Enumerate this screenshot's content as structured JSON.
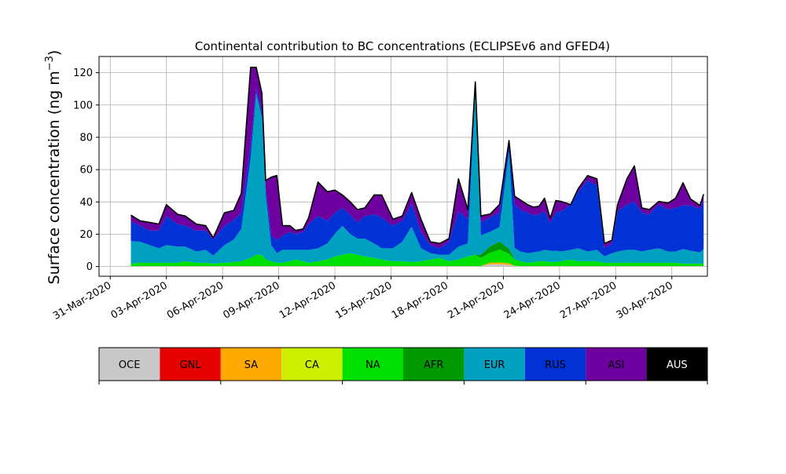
{
  "chart_data": {
    "type": "area",
    "stacked": true,
    "title": "Continental contribution to BC concentrations (ECLIPSEv6 and GFED4)",
    "ylabel_main": "Surface concentration (ng m",
    "ylabel_exp": "−3",
    "ylabel_close": ")",
    "xlabel": "",
    "ylim": [
      -6,
      130
    ],
    "xlim_days": [
      -0.6,
      31.9
    ],
    "x_ticks": [
      "31-Mar-2020",
      "03-Apr-2020",
      "06-Apr-2020",
      "09-Apr-2020",
      "12-Apr-2020",
      "15-Apr-2020",
      "18-Apr-2020",
      "21-Apr-2020",
      "24-Apr-2020",
      "27-Apr-2020",
      "30-Apr-2020"
    ],
    "x_tick_days": [
      0,
      3,
      6,
      9,
      12,
      15,
      18,
      21,
      24,
      27,
      30
    ],
    "y_ticks": [
      "0",
      "20",
      "40",
      "60",
      "80",
      "100",
      "120"
    ],
    "y_tick_values": [
      0,
      20,
      40,
      60,
      80,
      100,
      120
    ],
    "grid": true,
    "x_days": [
      1.1,
      1.6,
      2.1,
      2.6,
      3.0,
      3.6,
      4.0,
      4.6,
      5.1,
      5.5,
      6.1,
      6.6,
      7.0,
      7.5,
      7.8,
      8.1,
      8.3,
      8.6,
      8.9,
      9.2,
      9.6,
      9.9,
      10.3,
      10.6,
      11.1,
      11.6,
      12.0,
      12.4,
      12.8,
      13.2,
      13.6,
      14.1,
      14.5,
      15.1,
      15.6,
      16.1,
      16.6,
      17.1,
      17.6,
      18.1,
      18.6,
      19.1,
      19.5,
      19.8,
      20.3,
      20.8,
      21.3,
      21.6,
      21.9,
      22.3,
      22.6,
      22.9,
      23.2,
      23.5,
      23.8,
      24.1,
      24.6,
      25.0,
      25.5,
      26.0,
      26.4,
      26.8,
      27.1,
      27.6,
      28.0,
      28.4,
      28.8,
      29.3,
      29.8,
      30.2,
      30.6,
      31.0,
      31.5,
      31.7
    ],
    "series": [
      {
        "name": "OCE",
        "color": "#c8c8c8",
        "values": [
          0.3,
          0.3,
          0.3,
          0.3,
          0.3,
          0.3,
          0.3,
          0.3,
          0.3,
          0.3,
          0.3,
          0.3,
          0.3,
          0.3,
          0.3,
          0.3,
          0.3,
          0.3,
          0.3,
          0.3,
          0.3,
          0.3,
          0.3,
          0.3,
          0.3,
          0.3,
          0.3,
          0.3,
          0.3,
          0.3,
          0.3,
          0.3,
          0.3,
          0.3,
          0.3,
          0.3,
          0.3,
          0.3,
          0.3,
          0.3,
          0.3,
          0.3,
          0.3,
          0.3,
          1.5,
          1.5,
          1,
          0.5,
          0.3,
          0.3,
          0.3,
          0.3,
          0.3,
          0.3,
          0.3,
          0.3,
          0.3,
          0.3,
          0.3,
          0.3,
          0.3,
          0.3,
          0.3,
          0.3,
          0.3,
          0.3,
          0.3,
          0.3,
          0.3,
          0.3,
          0.3,
          0.3,
          0.3,
          0.3
        ]
      },
      {
        "name": "GNL",
        "color": "#e60000",
        "values": [
          0,
          0,
          0,
          0,
          0,
          0,
          0,
          0,
          0,
          0,
          0,
          0,
          0,
          0,
          0,
          0,
          0,
          0,
          0,
          0,
          0,
          0,
          0,
          0,
          0,
          0,
          0,
          0,
          0,
          0,
          0,
          0,
          0,
          0,
          0,
          0,
          0,
          0,
          0,
          0,
          0,
          0,
          0,
          0,
          0,
          0,
          0,
          0,
          0,
          0,
          0,
          0,
          0,
          0,
          0,
          0,
          0,
          0,
          0,
          0,
          0,
          0,
          0,
          0,
          0,
          0,
          0,
          0,
          0,
          0,
          0,
          0,
          0,
          0
        ]
      },
      {
        "name": "SA",
        "color": "#ffaa00",
        "values": [
          0,
          0,
          0,
          0,
          0,
          0,
          0,
          0,
          0,
          0,
          0,
          0,
          0,
          0,
          0,
          0,
          0,
          0,
          0,
          0,
          0,
          0,
          0,
          0,
          0,
          0,
          0,
          0,
          0,
          0,
          0,
          0,
          0,
          0,
          0,
          0,
          0,
          0,
          0,
          0,
          0,
          0,
          0,
          0,
          1,
          1,
          1,
          0,
          0,
          0,
          0,
          0,
          0,
          0,
          0,
          0,
          0,
          0,
          0,
          0,
          0,
          0,
          0,
          0,
          0,
          0,
          0,
          0,
          0,
          0,
          0,
          0,
          0,
          0
        ]
      },
      {
        "name": "CA",
        "color": "#ccf000",
        "values": [
          0,
          0,
          0,
          0,
          0,
          0,
          0,
          0,
          0,
          0,
          0,
          0,
          0,
          0,
          0,
          0,
          0,
          0,
          0,
          0,
          0,
          0,
          0,
          0,
          0,
          0,
          0,
          0,
          0,
          0,
          0,
          0,
          0,
          0,
          0,
          0,
          0,
          0,
          0,
          0,
          0,
          0,
          0,
          0,
          0,
          0,
          0,
          0,
          0,
          0,
          0,
          0,
          0,
          0,
          0,
          0,
          0,
          0,
          0,
          0,
          0,
          0,
          0,
          0,
          0,
          0,
          0,
          0,
          0,
          0,
          0,
          0,
          0,
          0
        ]
      },
      {
        "name": "NA",
        "color": "#00e000",
        "values": [
          1.5,
          2,
          2,
          2,
          2,
          2,
          3,
          2,
          2,
          1.5,
          2,
          2.5,
          3,
          5,
          7,
          7,
          4,
          3,
          2,
          2,
          3,
          4,
          3,
          2,
          3,
          4,
          6,
          7,
          8,
          7,
          6,
          5,
          4,
          3,
          3,
          2.5,
          3,
          4,
          5,
          3,
          4,
          6,
          7,
          5,
          6,
          8,
          6,
          4,
          3,
          2,
          2.5,
          3,
          3,
          2.5,
          2.5,
          3,
          4,
          3,
          3,
          3,
          2,
          2,
          2,
          2,
          2,
          2,
          2,
          2,
          2,
          2,
          1.5,
          1.5,
          1.5,
          1.5
        ]
      },
      {
        "name": "AFR",
        "color": "#009a00",
        "values": [
          0,
          0,
          0,
          0,
          0,
          0,
          0,
          0,
          0,
          0,
          0,
          0,
          0,
          0,
          0,
          0,
          0,
          0,
          0,
          0,
          0,
          0,
          0,
          0,
          0,
          0,
          0,
          0,
          0,
          0,
          0,
          0,
          0,
          0,
          0,
          0,
          0,
          0,
          0,
          0,
          0,
          0,
          0,
          2,
          4,
          5,
          3,
          0,
          0,
          0,
          0,
          0,
          0,
          0,
          0,
          0,
          0,
          0,
          0,
          0,
          0,
          0,
          0,
          0,
          0,
          0,
          0,
          0,
          0,
          0,
          0,
          0,
          0,
          0
        ]
      },
      {
        "name": "EUR",
        "color": "#00a0c0",
        "values": [
          14,
          13,
          11,
          9,
          11,
          10,
          9,
          7,
          8,
          5,
          11,
          14,
          20,
          62,
          100,
          85,
          40,
          10,
          6,
          8,
          7,
          6,
          7,
          8,
          8,
          10,
          14,
          18,
          12,
          10,
          11,
          9,
          7,
          8,
          12,
          22,
          8,
          4,
          2,
          4,
          8,
          8,
          102,
          12,
          9,
          9,
          60,
          7,
          6,
          6,
          6,
          6,
          7,
          7,
          7,
          6,
          6,
          8,
          6,
          7,
          4,
          6,
          7,
          8,
          8,
          7,
          8,
          9,
          7,
          7,
          9,
          8,
          7,
          9
        ]
      },
      {
        "name": "RUS",
        "color": "#0032d6",
        "values": [
          12,
          10,
          9,
          11,
          18,
          14,
          13,
          13,
          12,
          10,
          12,
          12,
          10,
          8,
          3,
          3,
          5,
          6,
          8,
          9,
          11,
          10,
          11,
          16,
          20,
          14,
          13,
          11,
          12,
          10,
          14,
          18,
          19,
          14,
          13,
          14,
          10,
          5,
          4,
          8,
          22,
          15,
          2,
          8,
          9,
          9,
          7,
          27,
          26,
          25,
          23,
          23,
          24,
          17,
          24,
          25,
          28,
          35,
          44,
          40,
          5,
          6,
          25,
          28,
          30,
          24,
          22,
          27,
          26,
          27,
          27,
          28,
          27,
          30
        ]
      },
      {
        "name": "ASI",
        "color": "#6e00a0",
        "values": [
          4,
          3,
          5,
          4,
          7,
          6,
          6,
          4,
          3,
          1,
          8,
          6,
          12,
          48,
          13,
          12,
          4,
          36,
          40,
          6,
          4,
          2,
          2,
          4,
          21,
          18,
          14,
          8,
          8,
          8,
          5,
          12,
          14,
          4,
          3,
          7,
          8,
          2,
          3,
          2,
          20,
          6,
          3,
          4,
          2,
          5,
          0,
          5,
          6,
          5,
          5,
          5,
          8,
          3,
          7,
          6,
          0,
          2,
          3,
          4,
          3,
          2,
          4,
          16,
          22,
          3,
          3,
          2,
          4,
          6,
          14,
          4,
          2,
          4
        ]
      },
      {
        "name": "AUS",
        "color": "#000000",
        "values": [
          0,
          0,
          0,
          0,
          0,
          0,
          0,
          0,
          0,
          0,
          0,
          0,
          0,
          0,
          0,
          0,
          0,
          0,
          0,
          0,
          0,
          0,
          0,
          0,
          0,
          0,
          0,
          0,
          0,
          0,
          0,
          0,
          0,
          0,
          0,
          0,
          0,
          0,
          0,
          0,
          0,
          0,
          0,
          0,
          0,
          0,
          0,
          0,
          0,
          0,
          0,
          0,
          0,
          0,
          0,
          0,
          0,
          0,
          0,
          0,
          0,
          0,
          0,
          0,
          0,
          0,
          0,
          0,
          0,
          0,
          0,
          0,
          0,
          0
        ]
      }
    ],
    "colorbar": {
      "labels": [
        "OCE",
        "GNL",
        "SA",
        "CA",
        "NA",
        "AFR",
        "EUR",
        "RUS",
        "ASI",
        "AUS"
      ],
      "colors": [
        "#c8c8c8",
        "#e60000",
        "#ffaa00",
        "#ccf000",
        "#00e000",
        "#009a00",
        "#00a0c0",
        "#0032d6",
        "#6e00a0",
        "#000000"
      ],
      "text_colors": [
        "#000000",
        "#000000",
        "#000000",
        "#000000",
        "#000000",
        "#000000",
        "#000000",
        "#000000",
        "#000000",
        "#ffffff"
      ]
    }
  }
}
